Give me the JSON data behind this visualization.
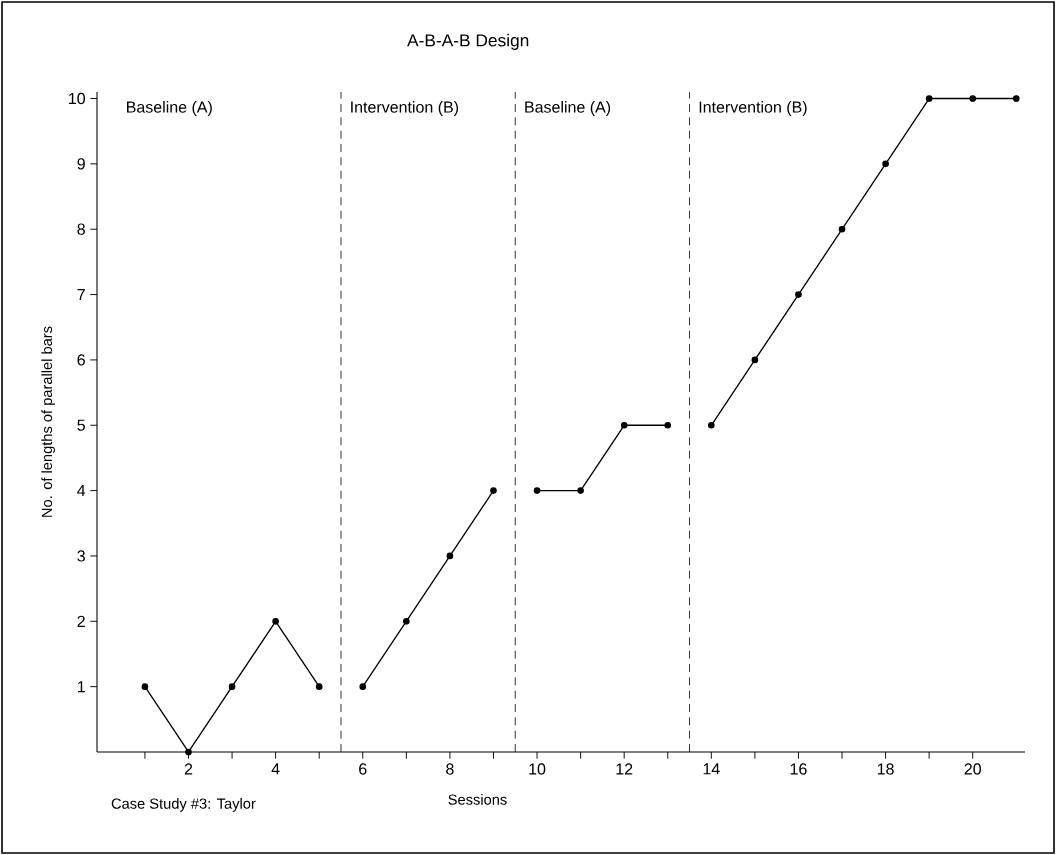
{
  "chart_data": {
    "type": "line",
    "title": "A-B-A-B Design",
    "xlabel": "Sessions",
    "ylabel": "No. of lengths of parallel bars",
    "series": [
      {
        "color": "#000000",
        "x": [
          1,
          2,
          3,
          4,
          5
        ],
        "values": [
          1,
          0,
          1,
          2,
          1
        ]
      },
      {
        "color": "#000000",
        "x": [
          6,
          7,
          8,
          9
        ],
        "values": [
          1,
          2,
          3,
          4
        ]
      },
      {
        "color": "#000000",
        "x": [
          10,
          11,
          12,
          13
        ],
        "values": [
          4,
          4,
          5,
          5
        ]
      },
      {
        "color": "#000000",
        "x": [
          14,
          15,
          16,
          17,
          18,
          19,
          20,
          21
        ],
        "values": [
          5,
          6,
          7,
          8,
          9,
          10,
          10,
          10
        ]
      }
    ],
    "xlim": [
      -0.1,
      21.2
    ],
    "ylim": [
      0,
      10.1
    ],
    "xticks": [
      {
        "value": 1,
        "label": null
      },
      2,
      {
        "value": 3,
        "label": null
      },
      4,
      {
        "value": 5,
        "label": null
      },
      6,
      {
        "value": 7,
        "label": null
      },
      8,
      {
        "value": 9,
        "label": null
      },
      10,
      {
        "value": 11,
        "label": null
      },
      12,
      {
        "value": 13,
        "label": null
      },
      14,
      {
        "value": 15,
        "label": null
      },
      16,
      {
        "value": 17,
        "label": null
      },
      18,
      {
        "value": 19,
        "label": null
      },
      20
    ],
    "yticks": [
      1,
      2,
      3,
      4,
      5,
      6,
      7,
      8,
      9,
      10
    ],
    "ref_lines": [
      {
        "axis": "x",
        "value": 5.5,
        "line_style": "dashed"
      },
      {
        "axis": "x",
        "value": 9.5,
        "line_style": "dashed"
      },
      {
        "axis": "x",
        "value": 13.5,
        "line_style": "dashed"
      }
    ],
    "annotations": [
      "Baseline (A)",
      "Intervention (B)",
      "Baseline (A)",
      "Intervention (B)",
      "Case Study #3: Taylor"
    ],
    "marker": "circle",
    "line_style": "solid"
  }
}
